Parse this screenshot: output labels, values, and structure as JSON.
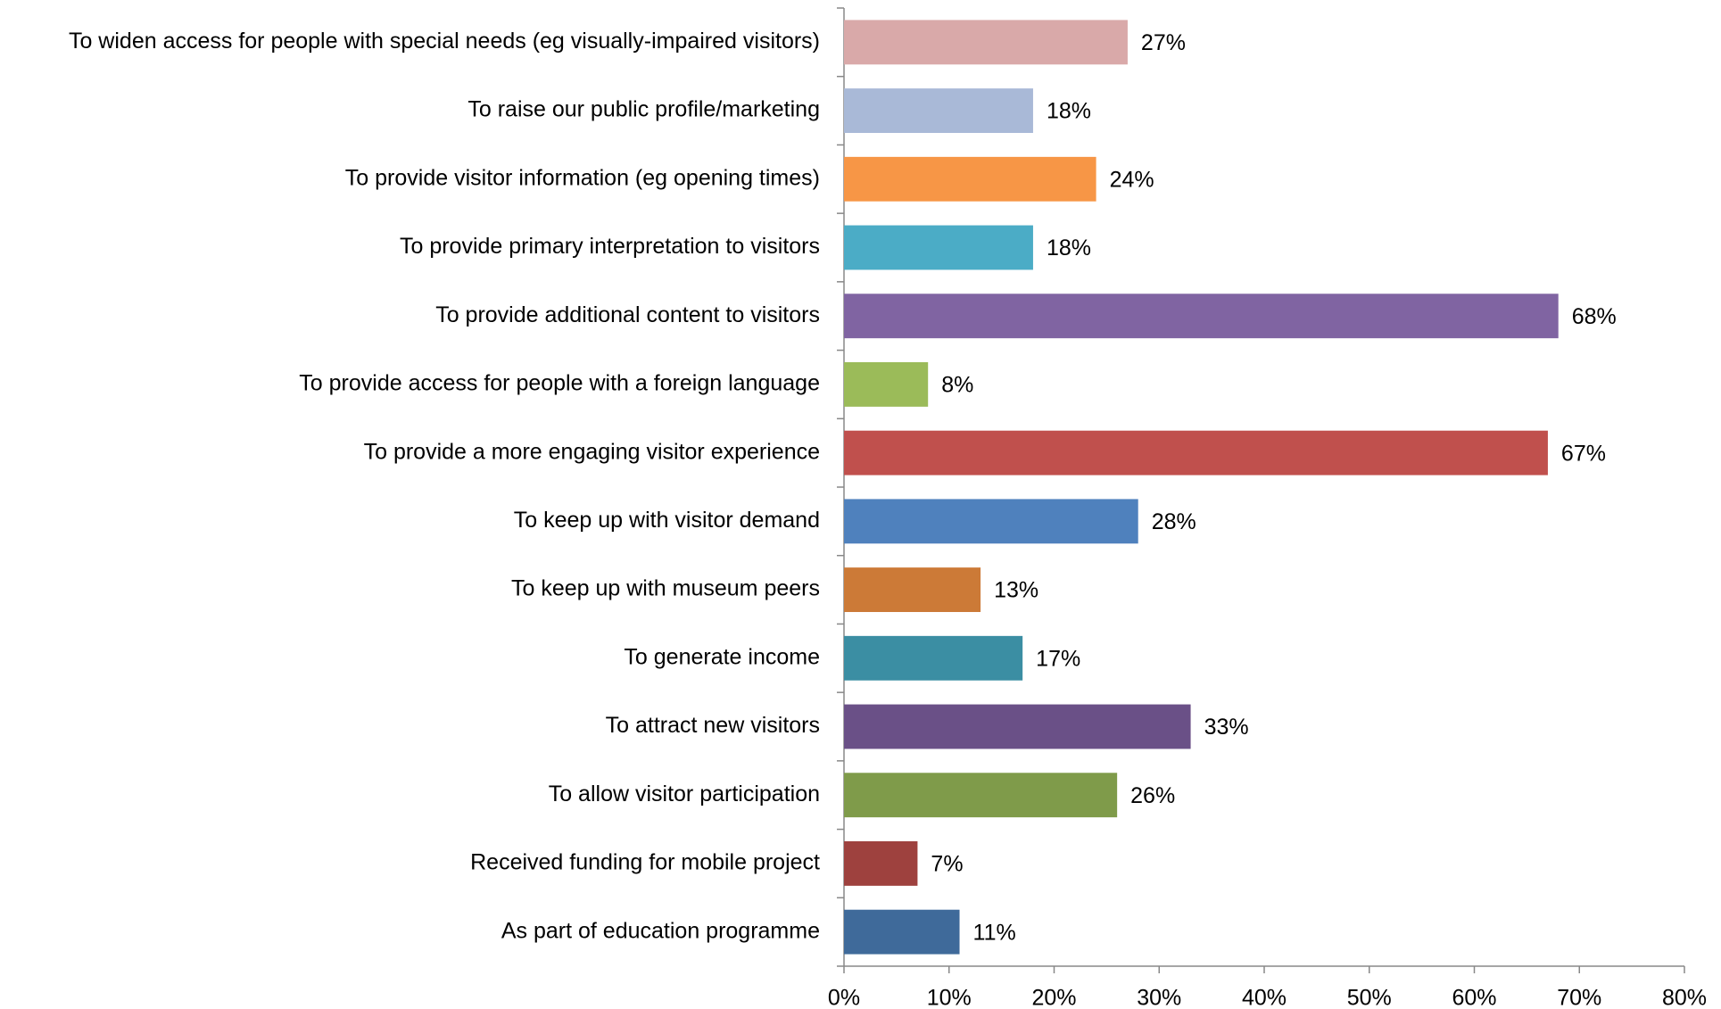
{
  "chart_data": {
    "type": "bar",
    "orientation": "horizontal",
    "categories": [
      "To widen access for people with special needs (eg visually-impaired visitors)",
      "To raise our public profile/marketing",
      "To provide visitor information (eg opening times)",
      "To provide primary interpretation to visitors",
      "To provide additional content to visitors",
      "To provide access for people with a foreign language",
      "To provide a more engaging visitor experience",
      "To keep up with visitor demand",
      "To keep up with museum peers",
      "To generate income",
      "To attract new visitors",
      "To allow visitor participation",
      "Received funding for mobile project",
      "As part of education programme"
    ],
    "values": [
      27,
      18,
      24,
      18,
      68,
      8,
      67,
      28,
      13,
      17,
      33,
      26,
      7,
      11
    ],
    "value_labels": [
      "27%",
      "18%",
      "24%",
      "18%",
      "68%",
      "8%",
      "67%",
      "28%",
      "13%",
      "17%",
      "33%",
      "26%",
      "7%",
      "11%"
    ],
    "colors": [
      "#d9a9a9",
      "#a9b9d7",
      "#f79646",
      "#4bacc6",
      "#8064a2",
      "#9bbb59",
      "#c0504d",
      "#4f81bd",
      "#cc7a37",
      "#3b8ea3",
      "#6a5087",
      "#7f9b4a",
      "#9e413e",
      "#3f6a9a"
    ],
    "xlim": [
      0,
      80
    ],
    "xticks": [
      {
        "value": 0,
        "label": "0%"
      },
      {
        "value": 10,
        "label": "10%"
      },
      {
        "value": 20,
        "label": "20%"
      },
      {
        "value": 30,
        "label": "30%"
      },
      {
        "value": 40,
        "label": "40%"
      },
      {
        "value": 50,
        "label": "50%"
      },
      {
        "value": 60,
        "label": "60%"
      },
      {
        "value": 70,
        "label": "70%"
      },
      {
        "value": 80,
        "label": "80%"
      }
    ]
  }
}
